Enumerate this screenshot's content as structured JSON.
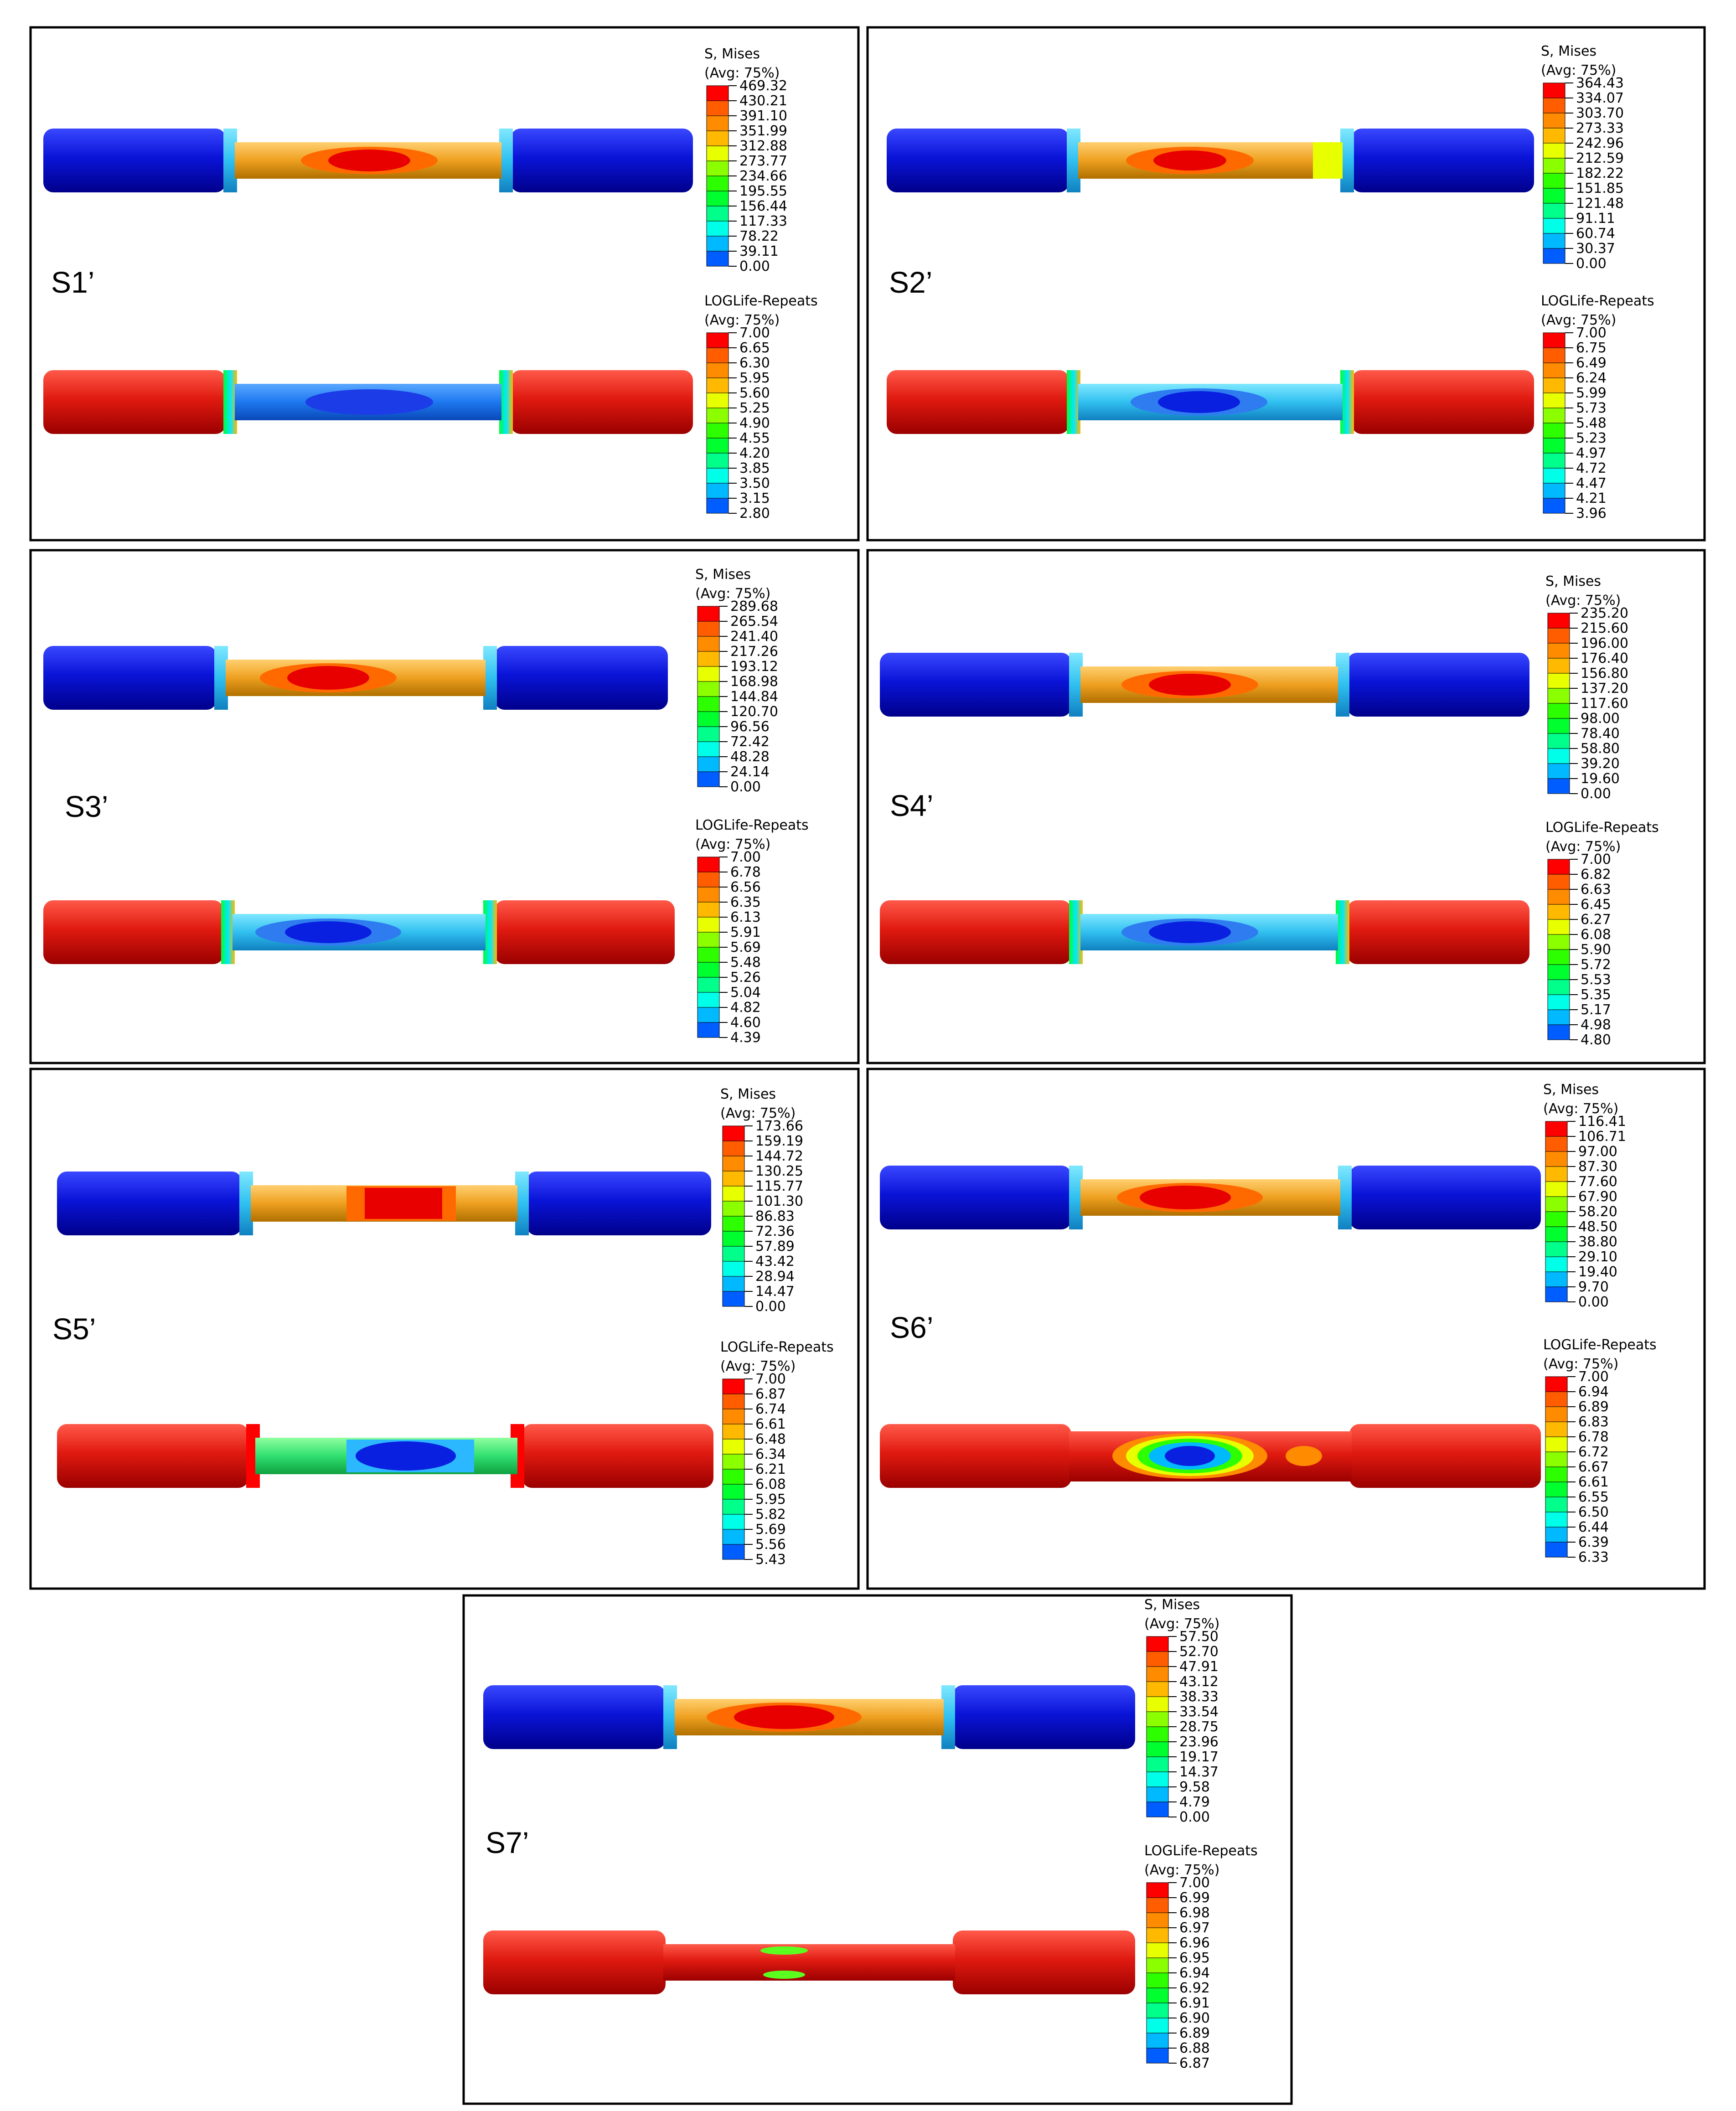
{
  "figure": {
    "contour_colors": [
      "#0000ff",
      "#005dff",
      "#00b9ff",
      "#00ffe8",
      "#00ff8b",
      "#00ff2e",
      "#2eff00",
      "#8bff00",
      "#e8ff00",
      "#ffb900",
      "#ff8b00",
      "#ff5d00",
      "#ff0000"
    ],
    "panels": [
      {
        "id": "S1",
        "label": "S1’",
        "stress_legend": {
          "title": "S, Mises",
          "subtitle": "(Avg: 75%)",
          "values": [
            "469.32",
            "430.21",
            "391.10",
            "351.99",
            "312.88",
            "273.77",
            "234.66",
            "195.55",
            "156.44",
            "117.33",
            "78.22",
            "39.11",
            "0.00"
          ]
        },
        "life_legend": {
          "title": "LOGLife-Repeats",
          "subtitle": "(Avg: 75%)",
          "values": [
            "7.00",
            "6.65",
            "6.30",
            "5.95",
            "5.60",
            "5.25",
            "4.90",
            "4.55",
            "4.20",
            "3.85",
            "3.50",
            "3.15",
            "2.80"
          ]
        }
      },
      {
        "id": "S2",
        "label": "S2’",
        "stress_legend": {
          "title": "S, Mises",
          "subtitle": "(Avg: 75%)",
          "values": [
            "364.43",
            "334.07",
            "303.70",
            "273.33",
            "242.96",
            "212.59",
            "182.22",
            "151.85",
            "121.48",
            "91.11",
            "60.74",
            "30.37",
            "0.00"
          ]
        },
        "life_legend": {
          "title": "LOGLife-Repeats",
          "subtitle": "(Avg: 75%)",
          "values": [
            "7.00",
            "6.75",
            "6.49",
            "6.24",
            "5.99",
            "5.73",
            "5.48",
            "5.23",
            "4.97",
            "4.72",
            "4.47",
            "4.21",
            "3.96"
          ]
        }
      },
      {
        "id": "S3",
        "label": "S3’",
        "stress_legend": {
          "title": "S, Mises",
          "subtitle": "(Avg: 75%)",
          "values": [
            "289.68",
            "265.54",
            "241.40",
            "217.26",
            "193.12",
            "168.98",
            "144.84",
            "120.70",
            "96.56",
            "72.42",
            "48.28",
            "24.14",
            "0.00"
          ]
        },
        "life_legend": {
          "title": "LOGLife-Repeats",
          "subtitle": "(Avg: 75%)",
          "values": [
            "7.00",
            "6.78",
            "6.56",
            "6.35",
            "6.13",
            "5.91",
            "5.69",
            "5.48",
            "5.26",
            "5.04",
            "4.82",
            "4.60",
            "4.39"
          ]
        }
      },
      {
        "id": "S4",
        "label": "S4’",
        "stress_legend": {
          "title": "S, Mises",
          "subtitle": "(Avg: 75%)",
          "values": [
            "235.20",
            "215.60",
            "196.00",
            "176.40",
            "156.80",
            "137.20",
            "117.60",
            "98.00",
            "78.40",
            "58.80",
            "39.20",
            "19.60",
            "0.00"
          ]
        },
        "life_legend": {
          "title": "LOGLife-Repeats",
          "subtitle": "(Avg: 75%)",
          "values": [
            "7.00",
            "6.82",
            "6.63",
            "6.45",
            "6.27",
            "6.08",
            "5.90",
            "5.72",
            "5.53",
            "5.35",
            "5.17",
            "4.98",
            "4.80"
          ]
        }
      },
      {
        "id": "S5",
        "label": "S5’",
        "stress_legend": {
          "title": "S, Mises",
          "subtitle": "(Avg: 75%)",
          "values": [
            "173.66",
            "159.19",
            "144.72",
            "130.25",
            "115.77",
            "101.30",
            "86.83",
            "72.36",
            "57.89",
            "43.42",
            "28.94",
            "14.47",
            "0.00"
          ]
        },
        "life_legend": {
          "title": "LOGLife-Repeats",
          "subtitle": "(Avg: 75%)",
          "values": [
            "7.00",
            "6.87",
            "6.74",
            "6.61",
            "6.48",
            "6.34",
            "6.21",
            "6.08",
            "5.95",
            "5.82",
            "5.69",
            "5.56",
            "5.43"
          ]
        }
      },
      {
        "id": "S6",
        "label": "S6’",
        "stress_legend": {
          "title": "S, Mises",
          "subtitle": "(Avg: 75%)",
          "values": [
            "116.41",
            "106.71",
            "97.00",
            "87.30",
            "77.60",
            "67.90",
            "58.20",
            "48.50",
            "38.80",
            "29.10",
            "19.40",
            "9.70",
            "0.00"
          ]
        },
        "life_legend": {
          "title": "LOGLife-Repeats",
          "subtitle": "(Avg: 75%)",
          "values": [
            "7.00",
            "6.94",
            "6.89",
            "6.83",
            "6.78",
            "6.72",
            "6.67",
            "6.61",
            "6.55",
            "6.50",
            "6.44",
            "6.39",
            "6.33"
          ]
        }
      },
      {
        "id": "S7",
        "label": "S7’",
        "stress_legend": {
          "title": "S, Mises",
          "subtitle": "(Avg: 75%)",
          "values": [
            "57.50",
            "52.70",
            "47.91",
            "43.12",
            "38.33",
            "33.54",
            "28.75",
            "23.96",
            "19.17",
            "14.37",
            "9.58",
            "4.79",
            "0.00"
          ]
        },
        "life_legend": {
          "title": "LOGLife-Repeats",
          "subtitle": "(Avg: 75%)",
          "values": [
            "7.00",
            "6.99",
            "6.98",
            "6.97",
            "6.96",
            "6.95",
            "6.94",
            "6.92",
            "6.91",
            "6.90",
            "6.89",
            "6.88",
            "6.87"
          ]
        }
      }
    ]
  }
}
